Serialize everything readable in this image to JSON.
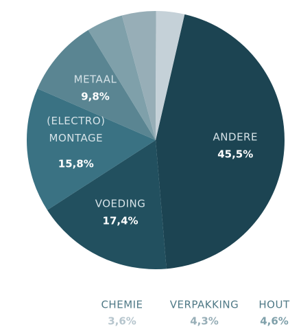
{
  "chart_data": {
    "type": "pie",
    "categories": [
      "ANDERE",
      "VOEDING",
      "(ELECTRO) MONTAGE",
      "METAAL",
      "HOUT",
      "VERPAKKING",
      "CHEMIE"
    ],
    "values": [
      45.5,
      17.4,
      15.8,
      9.8,
      4.6,
      4.3,
      3.6
    ],
    "value_labels": [
      "45,5%",
      "17,4%",
      "15,8%",
      "9,8%",
      "4,6%",
      "4,3%",
      "3,6%"
    ],
    "colors": [
      "#1c4452",
      "#22505f",
      "#3a7283",
      "#5a8592",
      "#7fa0aa",
      "#97aeb7",
      "#c5d1d8"
    ]
  }
}
